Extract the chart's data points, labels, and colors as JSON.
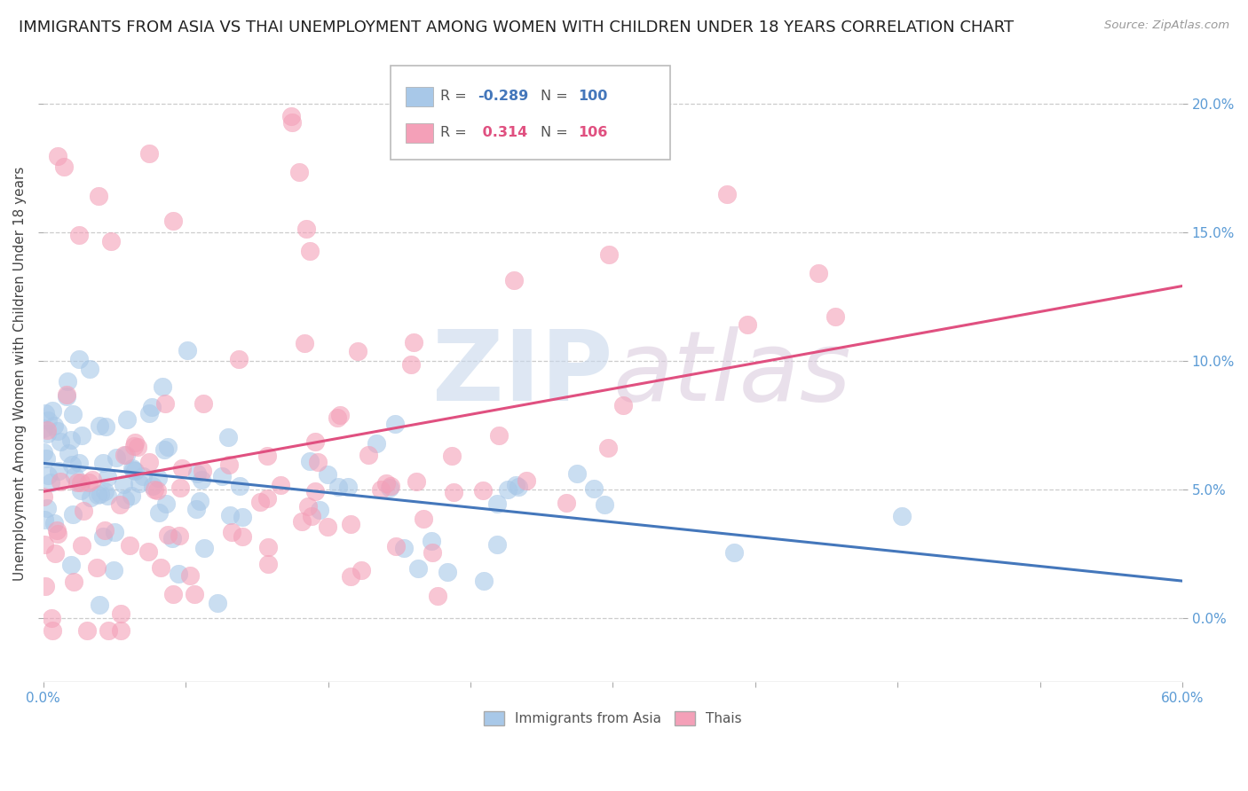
{
  "title": "IMMIGRANTS FROM ASIA VS THAI UNEMPLOYMENT AMONG WOMEN WITH CHILDREN UNDER 18 YEARS CORRELATION CHART",
  "source": "Source: ZipAtlas.com",
  "ylabel": "Unemployment Among Women with Children Under 18 years",
  "watermark_zip": "ZIP",
  "watermark_atlas": "atlas",
  "series1_label": "Immigrants from Asia",
  "series2_label": "Thais",
  "series1_color": "#a8c8e8",
  "series2_color": "#f4a0b8",
  "series1_line_color": "#4477bb",
  "series2_line_color": "#e05080",
  "R1": -0.289,
  "N1": 100,
  "R2": 0.314,
  "N2": 106,
  "xlim": [
    0.0,
    0.6
  ],
  "ylim": [
    -0.025,
    0.215
  ],
  "yticks": [
    0.0,
    0.05,
    0.1,
    0.15,
    0.2
  ],
  "ytick_labels": [
    "0.0%",
    "5.0%",
    "10.0%",
    "15.0%",
    "20.0%"
  ],
  "background_color": "#ffffff",
  "grid_color": "#cccccc",
  "title_fontsize": 13,
  "axis_label_fontsize": 11,
  "tick_fontsize": 11,
  "legend_r1_color": "#4477bb",
  "legend_r2_color": "#e05080",
  "legend_n1_color": "#4477bb",
  "legend_n2_color": "#e05080"
}
